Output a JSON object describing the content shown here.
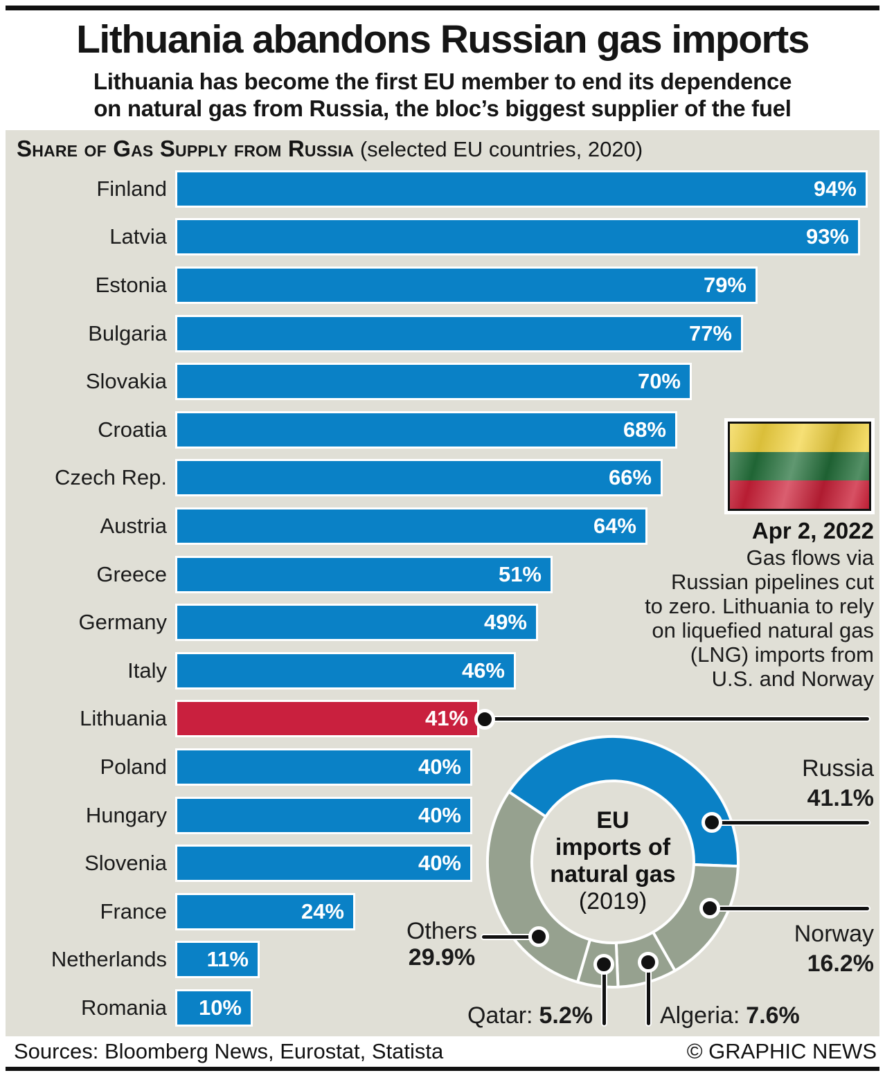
{
  "page": {
    "title": "Lithuania abandons Russian gas imports",
    "subtitle": "Lithuania has become the first EU member to end its dependence\non natural gas from Russia, the bloc’s biggest supplier of the fuel",
    "footer_sources": "Sources: Bloomberg News, Eurostat, Statista",
    "footer_credit": "© GRAPHIC NEWS"
  },
  "panel": {
    "header_smallcaps": "Share of Gas Supply from Russia",
    "header_note": " (selected EU countries, 2020)",
    "bg_color": "#e0dfd6"
  },
  "sidebar": {
    "flag_name": "lithuania-flag",
    "flag_colors": [
      "#f3d440",
      "#23703a",
      "#cc2038"
    ],
    "date": "Apr 2, 2022",
    "note": "Gas flows via\nRussian pipelines cut\nto zero. Lithuania to rely\non liquefied natural gas\n(LNG) imports from\nU.S. and Norway"
  },
  "callouts": {
    "qatar_label": "Qatar:",
    "qatar_value": "5.2%",
    "algeria_label": "Algeria:",
    "algeria_value": "7.6%"
  },
  "chart_data": [
    {
      "type": "bar",
      "title": "Share of Gas Supply from Russia (selected EU countries, 2020)",
      "orientation": "horizontal",
      "unit": "%",
      "categories": [
        "Finland",
        "Latvia",
        "Estonia",
        "Bulgaria",
        "Slovakia",
        "Croatia",
        "Czech Rep.",
        "Austria",
        "Greece",
        "Germany",
        "Italy",
        "Lithuania",
        "Poland",
        "Hungary",
        "Slovenia",
        "France",
        "Netherlands",
        "Romania"
      ],
      "values": [
        94,
        93,
        79,
        77,
        70,
        68,
        66,
        64,
        51,
        49,
        46,
        41,
        40,
        40,
        40,
        24,
        11,
        10
      ],
      "xlim": [
        0,
        100
      ],
      "grid": false,
      "bar_color": "#0a81c6",
      "highlight_index": 11,
      "highlight_color": "#c9203e"
    },
    {
      "type": "pie",
      "subtype": "donut",
      "center_title": "EU\nimports of\nnatural gas",
      "center_subtitle": "(2019)",
      "start_angle_deg": -56,
      "slices": [
        {
          "label": "Russia",
          "value": 41.1,
          "display": "41.1%",
          "color": "#0a81c6"
        },
        {
          "label": "Norway",
          "value": 16.2,
          "display": "16.2%",
          "color": "#96a18f"
        },
        {
          "label": "Algeria",
          "value": 7.6,
          "display": "7.6%",
          "color": "#96a18f"
        },
        {
          "label": "Qatar",
          "value": 5.2,
          "display": "5.2%",
          "color": "#96a18f"
        },
        {
          "label": "Others",
          "value": 29.9,
          "display": "29.9%",
          "color": "#96a18f"
        }
      ]
    }
  ]
}
